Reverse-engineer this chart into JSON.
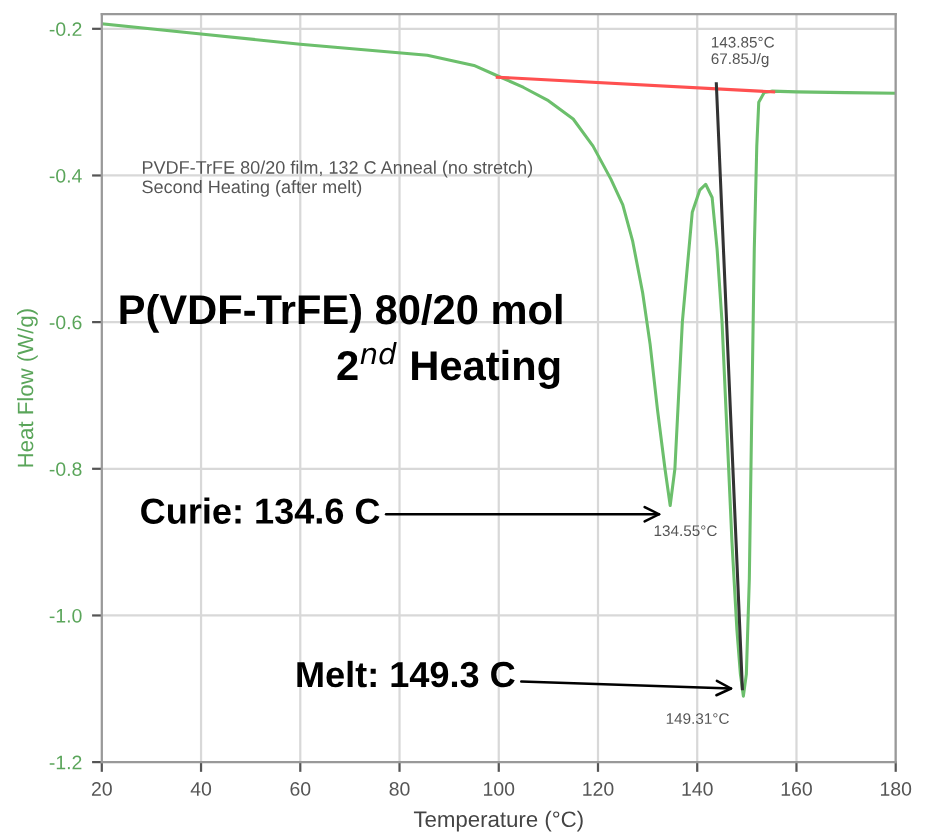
{
  "chart_data": {
    "type": "line",
    "xlabel": "Temperature (°C)",
    "ylabel": "Heat Flow (W/g)",
    "xlim": [
      20,
      180
    ],
    "xticks": [
      20,
      40,
      60,
      80,
      100,
      120,
      140,
      160,
      180
    ],
    "ylim": [
      -1.2,
      -0.18
    ],
    "yticks": [
      -1.2,
      {
        "value": -1.0,
        "label": "-1.0"
      },
      -0.8,
      -0.6,
      -0.4,
      -0.2
    ],
    "grid": true,
    "legend": false,
    "marker": "none",
    "line_style": "solid",
    "series": [
      {
        "color": "#6cbf6c",
        "x": [
          20,
          40,
          60,
          85.6,
          95,
          99.7,
          105,
          110,
          115,
          119,
          122.6,
          125,
          127,
          129,
          130.5,
          132,
          133.5,
          134.55,
          135.5,
          137,
          139,
          140.5,
          141.7,
          143,
          144,
          145,
          146,
          147,
          148,
          148.7,
          149.3,
          149.9,
          150.5,
          151,
          151.5,
          152,
          152.4,
          153.5,
          155,
          160,
          170,
          180
        ],
        "values": [
          -0.193,
          -0.207,
          -0.221,
          -0.236,
          -0.25,
          -0.264,
          -0.28,
          -0.298,
          -0.323,
          -0.36,
          -0.405,
          -0.44,
          -0.49,
          -0.56,
          -0.63,
          -0.72,
          -0.8,
          -0.85,
          -0.8,
          -0.6,
          -0.45,
          -0.42,
          -0.412,
          -0.43,
          -0.5,
          -0.6,
          -0.75,
          -0.9,
          -1.02,
          -1.08,
          -1.11,
          -1.08,
          -0.95,
          -0.72,
          -0.5,
          -0.36,
          -0.3,
          -0.287,
          -0.285,
          -0.286,
          -0.287,
          -0.288
        ]
      },
      {
        "color": "#ff5050",
        "x": [
          99.7,
          155.4
        ],
        "values": [
          -0.266,
          -0.286
        ]
      },
      {
        "color": "#333333",
        "x": [
          143.85,
          149.1
        ],
        "values": [
          -0.275,
          -1.1
        ]
      }
    ],
    "annotations": [
      "PVDF-TrFE 80/20 film, 132 C Anneal (no stretch)\nSecond Heating (after melt)",
      "P(VDF-TrFE) 80/20 mol",
      "2$^{nd}$ Heating",
      {
        "text": "143.85°C\n67.85J/g",
        "x": 143.85,
        "y": -0.275
      },
      {
        "text": "134.55°C",
        "x": 134.55,
        "y": -0.85
      },
      {
        "text": "149.31°C",
        "x": 149.3,
        "y": -1.11
      },
      {
        "text": "Curie: 134.6 C",
        "x": 134.0,
        "y": -0.862
      },
      {
        "text": "Melt: 149.3 C",
        "x": 148.5,
        "y": -1.1
      }
    ]
  }
}
